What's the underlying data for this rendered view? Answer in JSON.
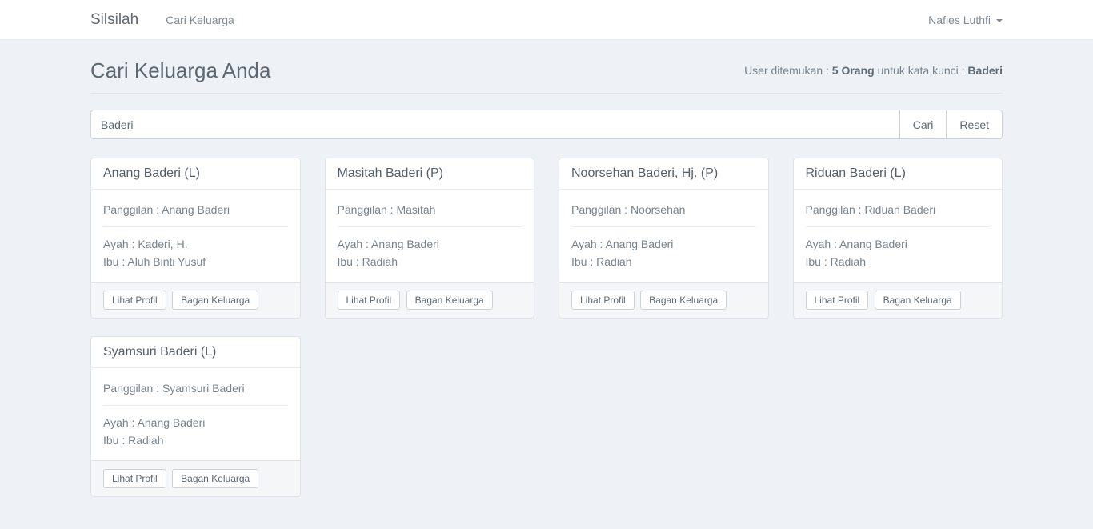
{
  "colors": {
    "page_background": "#eef1f5",
    "navbar_background": "#ffffff",
    "card_footer_background": "#f5f6f7",
    "heading_text": "#5c6873",
    "muted_text": "#76838f",
    "border": "#dde3e8"
  },
  "navbar": {
    "brand": "Silsilah",
    "nav_items": [
      {
        "label": "Cari Keluarga"
      }
    ],
    "user_menu": {
      "label": "Nafies Luthfi",
      "icon": "caret-down-icon"
    }
  },
  "page_header": {
    "title": "Cari Keluarga Anda",
    "result_status": {
      "prefix": "User ditemukan : ",
      "count": "5 Orang",
      "middle": " untuk kata kunci : ",
      "keyword": "Baderi"
    }
  },
  "search": {
    "value": "Baderi",
    "cari_label": "Cari",
    "reset_label": "Reset"
  },
  "cards": [
    {
      "title": "Anang Baderi (L)",
      "panggilan": "Panggilan : Anang Baderi",
      "ayah": "Ayah : Kaderi, H.",
      "ibu": "Ibu : Aluh Binti Yusuf",
      "lihat_profil_label": "Lihat Profil",
      "bagan_keluarga_label": "Bagan Keluarga"
    },
    {
      "title": "Masitah Baderi (P)",
      "panggilan": "Panggilan : Masitah",
      "ayah": "Ayah : Anang Baderi",
      "ibu": "Ibu : Radiah",
      "lihat_profil_label": "Lihat Profil",
      "bagan_keluarga_label": "Bagan Keluarga"
    },
    {
      "title": "Noorsehan Baderi, Hj. (P)",
      "panggilan": "Panggilan : Noorsehan",
      "ayah": "Ayah : Anang Baderi",
      "ibu": "Ibu : Radiah",
      "lihat_profil_label": "Lihat Profil",
      "bagan_keluarga_label": "Bagan Keluarga"
    },
    {
      "title": "Riduan Baderi (L)",
      "panggilan": "Panggilan : Riduan Baderi",
      "ayah": "Ayah : Anang Baderi",
      "ibu": "Ibu : Radiah",
      "lihat_profil_label": "Lihat Profil",
      "bagan_keluarga_label": "Bagan Keluarga"
    },
    {
      "title": "Syamsuri Baderi (L)",
      "panggilan": "Panggilan : Syamsuri Baderi",
      "ayah": "Ayah : Anang Baderi",
      "ibu": "Ibu : Radiah",
      "lihat_profil_label": "Lihat Profil",
      "bagan_keluarga_label": "Bagan Keluarga"
    }
  ]
}
